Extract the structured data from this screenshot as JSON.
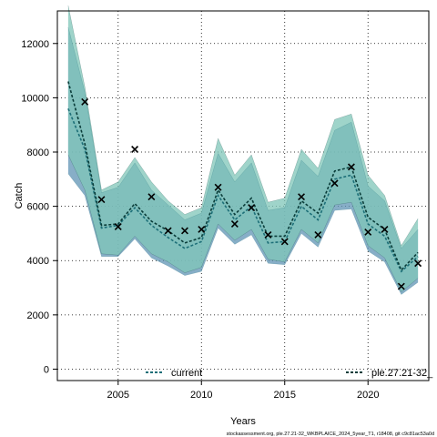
{
  "chart_data": {
    "type": "line",
    "xlabel": "Years",
    "ylabel": "Catch",
    "xlim": [
      2001.35,
      2023.65
    ],
    "ylim": [
      -420,
      13200
    ],
    "x_ticks": [
      2005,
      2010,
      2015,
      2020
    ],
    "x_tick_labels": [
      "2005",
      "2010",
      "2015",
      "2020"
    ],
    "y_ticks": [
      0,
      2000,
      4000,
      6000,
      8000,
      10000,
      12000
    ],
    "y_tick_labels": [
      "0",
      "2000",
      "4000",
      "6000",
      "8000",
      "10000",
      "12000"
    ],
    "grid": true,
    "x": [
      2002,
      2003,
      2004,
      2005,
      2006,
      2007,
      2008,
      2009,
      2010,
      2011,
      2012,
      2013,
      2014,
      2015,
      2016,
      2017,
      2018,
      2019,
      2020,
      2021,
      2022,
      2023
    ],
    "series": [
      {
        "name": "current",
        "color": "#1d6f78",
        "band_color": "#5f93b4",
        "median": [
          9600,
          8100,
          5200,
          5300,
          5950,
          5300,
          4850,
          4450,
          4700,
          6400,
          5500,
          6000,
          4650,
          4700,
          6000,
          5500,
          7000,
          7150,
          5350,
          4900,
          3600,
          4150
        ],
        "lower": [
          7200,
          6400,
          4150,
          4150,
          4800,
          4100,
          3800,
          3450,
          3600,
          5200,
          4600,
          4950,
          3900,
          3850,
          5000,
          4500,
          5850,
          5900,
          4350,
          3950,
          2750,
          3200
        ],
        "upper": [
          12600,
          10200,
          6500,
          6700,
          7600,
          6600,
          6050,
          5500,
          5750,
          7950,
          6900,
          7600,
          5850,
          5950,
          7700,
          7100,
          8800,
          9100,
          6750,
          6200,
          4450,
          5150
        ]
      },
      {
        "name": "ple.27.21-32_",
        "color": "#0a3d3a",
        "band_color": "#7fc5b8",
        "median": [
          10600,
          8300,
          5300,
          5350,
          6100,
          5450,
          5100,
          4650,
          4850,
          6600,
          5700,
          6300,
          4900,
          4900,
          6200,
          5750,
          7300,
          7450,
          5600,
          5150,
          3650,
          4300
        ],
        "lower": [
          7900,
          6600,
          4250,
          4200,
          4900,
          4250,
          3950,
          3550,
          3750,
          5350,
          4750,
          5150,
          4050,
          3950,
          5150,
          4650,
          6050,
          6150,
          4550,
          4100,
          2850,
          3350
        ],
        "upper": [
          13400,
          10400,
          6600,
          6900,
          7800,
          6900,
          6200,
          5700,
          5950,
          8500,
          7150,
          7900,
          6150,
          6300,
          8100,
          7400,
          9200,
          9400,
          7150,
          6400,
          4550,
          5550
        ]
      }
    ],
    "observed": {
      "marker": "x",
      "values": [
        null,
        9850,
        6250,
        5250,
        8100,
        6350,
        5100,
        5100,
        5150,
        6700,
        5350,
        5950,
        4950,
        4700,
        6350,
        4950,
        6850,
        7450,
        5050,
        5150,
        3050,
        3900
      ]
    },
    "legend": {
      "placement": "bottom"
    }
  },
  "footer": "stockassessment.org, ple.27.21-32_WKBPLAICE_2024_5year_T1, r18408, git c9c81ac53a0d"
}
